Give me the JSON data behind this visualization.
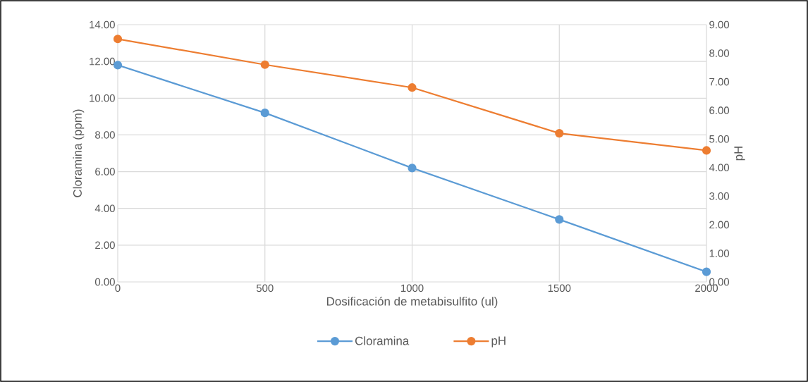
{
  "chart_data": {
    "type": "line",
    "xlabel": "Dosificación de metabisulfito (ul)",
    "ylabel": "Cloramina (ppm)",
    "y2label": "pH",
    "x": [
      0,
      500,
      1000,
      1500,
      2000
    ],
    "series": [
      {
        "name": "Cloramina",
        "color": "#5b9bd5",
        "values": [
          11.8,
          9.2,
          6.2,
          3.4,
          0.55
        ]
      },
      {
        "name": "pH",
        "color": "#ed7d31",
        "values": [
          8.5,
          7.6,
          6.8,
          5.2,
          4.6
        ],
        "axis": "y2"
      }
    ],
    "xlim": [
      0,
      2000
    ],
    "xticks": [
      0,
      500,
      1000,
      1500,
      2000
    ],
    "ylim": [
      0,
      14
    ],
    "yticks": [
      {
        "value": 0,
        "label": "0.00"
      },
      {
        "value": 2,
        "label": "2.00"
      },
      {
        "value": 4,
        "label": "4.00"
      },
      {
        "value": 6,
        "label": "6.00"
      },
      {
        "value": 8,
        "label": "8.00"
      },
      {
        "value": 10,
        "label": "10.00"
      },
      {
        "value": 12,
        "label": "12.00"
      },
      {
        "value": 14,
        "label": "14.00"
      }
    ],
    "y2lim": [
      0,
      9
    ],
    "y2ticks": [
      {
        "value": 0,
        "label": "0.00"
      },
      {
        "value": 1,
        "label": "1.00"
      },
      {
        "value": 2,
        "label": "2.00"
      },
      {
        "value": 3,
        "label": "3.00"
      },
      {
        "value": 4,
        "label": "4.00"
      },
      {
        "value": 5,
        "label": "5.00"
      },
      {
        "value": 6,
        "label": "6.00"
      },
      {
        "value": 7,
        "label": "7.00"
      },
      {
        "value": 8,
        "label": "8.00"
      },
      {
        "value": 9,
        "label": "9.00"
      }
    ],
    "grid": true,
    "legend": "bottom",
    "marker": "circle",
    "line_style": "solid"
  }
}
